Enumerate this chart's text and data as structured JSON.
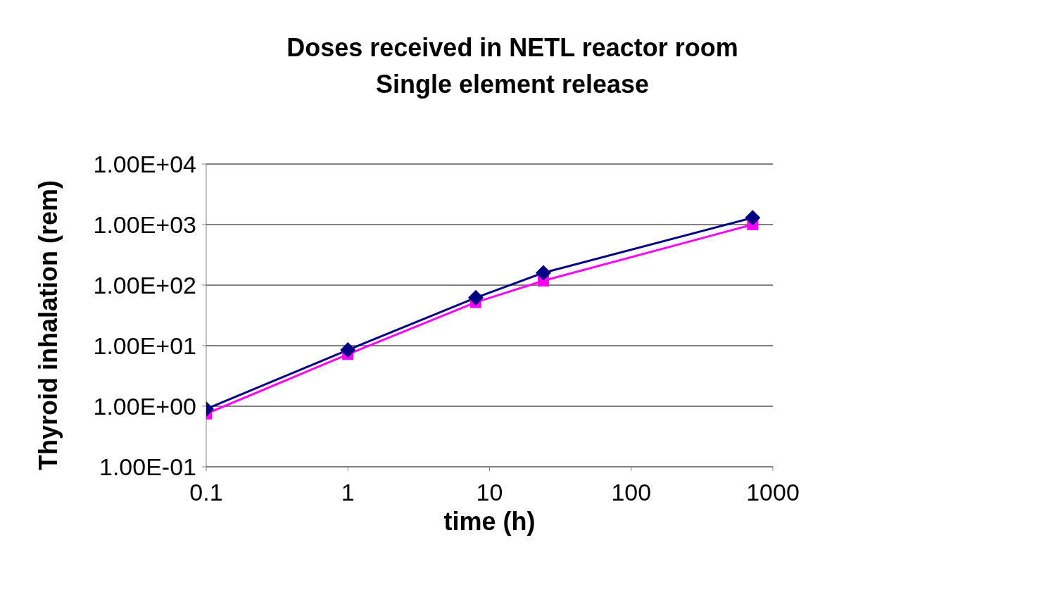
{
  "chart_data": {
    "type": "line",
    "title": "Doses received in NETL reactor room\nSingle element release",
    "xlabel": "time (h)",
    "ylabel": "Thyroid inhalation (rem)",
    "log": "xy",
    "grid": "y",
    "legend": false,
    "x": [
      0.1,
      1,
      8,
      24,
      720
    ],
    "series": [
      {
        "color": "#000080",
        "marker": "diamond",
        "values": [
          0.9,
          8.5,
          62,
          160,
          1300
        ]
      },
      {
        "color": "#ff00ff",
        "marker": "square",
        "values": [
          0.75,
          7.2,
          52,
          118,
          1000
        ]
      }
    ],
    "xlim": [
      0.1,
      1000
    ],
    "xticks": [
      0.1,
      1,
      10,
      100,
      1000
    ],
    "ylim": [
      0.1,
      10000
    ],
    "yticks": [
      {
        "value": 0.1,
        "label": "1.00E-01"
      },
      {
        "value": 1,
        "label": "1.00E+00"
      },
      {
        "value": 10,
        "label": "1.00E+01"
      },
      {
        "value": 100,
        "label": "1.00E+02"
      },
      {
        "value": 1000,
        "label": "1.00E+03"
      },
      {
        "value": 10000,
        "label": "1.00E+04"
      }
    ]
  }
}
